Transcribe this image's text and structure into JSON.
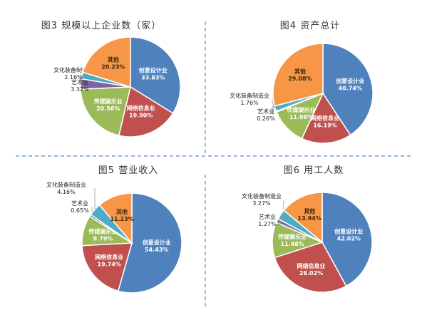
{
  "colors": {
    "creative": "#4f81bd",
    "network": "#c0504d",
    "media": "#9bbb59",
    "art": "#8064a2",
    "equipment": "#4bacc6",
    "other": "#f79646",
    "divider": "#3a6db3"
  },
  "chart_data": [
    {
      "type": "pie",
      "title": "图3 规模以上企业数（家）",
      "slices": [
        {
          "label": "创意设计业",
          "pct": "33.83%",
          "value": 33.83,
          "color_key": "creative"
        },
        {
          "label": "网络信息业",
          "pct": "19.90%",
          "value": 19.9,
          "color_key": "network"
        },
        {
          "label": "传媒娱乐业",
          "pct": "20.56%",
          "value": 20.56,
          "color_key": "media"
        },
        {
          "label": "艺术业",
          "pct": "3.32%",
          "value": 3.32,
          "color_key": "art"
        },
        {
          "label": "文化装备制造业",
          "pct": "2.16%",
          "value": 2.16,
          "color_key": "equipment"
        },
        {
          "label": "其他",
          "pct": "20.23%",
          "value": 20.23,
          "color_key": "other"
        }
      ]
    },
    {
      "type": "pie",
      "title": "图4 资产总计",
      "slices": [
        {
          "label": "创意设计业",
          "pct": "40.74%",
          "value": 40.74,
          "color_key": "creative"
        },
        {
          "label": "网络信息业",
          "pct": "16.19%",
          "value": 16.19,
          "color_key": "network"
        },
        {
          "label": "传媒娱乐业",
          "pct": "11.98%",
          "value": 11.98,
          "color_key": "media"
        },
        {
          "label": "艺术业",
          "pct": "0.26%",
          "value": 0.26,
          "color_key": "art"
        },
        {
          "label": "文化装备制造业",
          "pct": "1.76%",
          "value": 1.76,
          "color_key": "equipment"
        },
        {
          "label": "其他",
          "pct": "29.08%",
          "value": 29.08,
          "color_key": "other"
        }
      ]
    },
    {
      "type": "pie",
      "title": "图5 营业收入",
      "slices": [
        {
          "label": "创意设计业",
          "pct": "54.43%",
          "value": 54.43,
          "color_key": "creative"
        },
        {
          "label": "网络信息业",
          "pct": "19.74%",
          "value": 19.74,
          "color_key": "network"
        },
        {
          "label": "传媒娱乐业",
          "pct": "9.79%",
          "value": 9.79,
          "color_key": "media"
        },
        {
          "label": "艺术业",
          "pct": "0.65%",
          "value": 0.65,
          "color_key": "art"
        },
        {
          "label": "文化装备制造业",
          "pct": "4.16%",
          "value": 4.16,
          "color_key": "equipment"
        },
        {
          "label": "其他",
          "pct": "11.23%",
          "value": 11.23,
          "color_key": "other"
        }
      ]
    },
    {
      "type": "pie",
      "title": "图6 用工人数",
      "slices": [
        {
          "label": "创意设计业",
          "pct": "42.02%",
          "value": 42.02,
          "color_key": "creative"
        },
        {
          "label": "网络信息业",
          "pct": "28.02%",
          "value": 28.02,
          "color_key": "network"
        },
        {
          "label": "传媒娱乐业",
          "pct": "11.48%",
          "value": 11.48,
          "color_key": "media"
        },
        {
          "label": "艺术业",
          "pct": "1.27%",
          "value": 1.27,
          "color_key": "art"
        },
        {
          "label": "文化装备制造业",
          "pct": "3.27%",
          "value": 3.27,
          "color_key": "equipment"
        },
        {
          "label": "其他",
          "pct": "13.94%",
          "value": 13.94,
          "color_key": "other"
        }
      ]
    }
  ]
}
